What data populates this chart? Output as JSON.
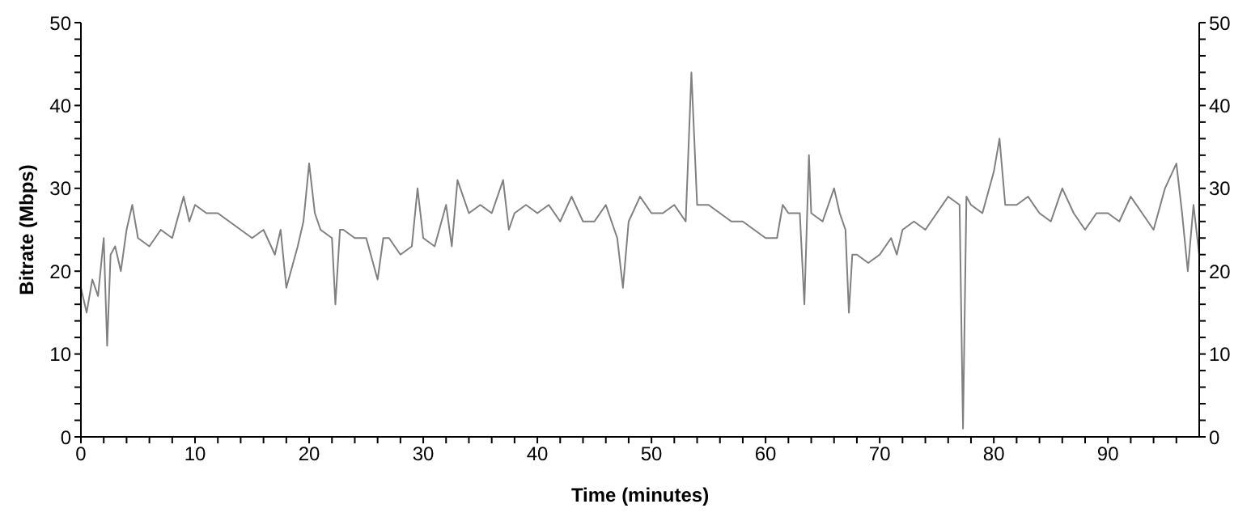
{
  "chart_data": {
    "type": "line",
    "xlabel": "Time (minutes)",
    "ylabel": "Bitrate (Mbps)",
    "color": "#808080",
    "marker": "none",
    "line_style": "solid",
    "grid": false,
    "legend": false,
    "x": [
      0,
      0.5,
      1,
      1.5,
      2,
      2.3,
      2.6,
      3,
      3.5,
      4,
      4.5,
      5,
      6,
      7,
      8,
      9,
      9.5,
      10,
      11,
      12,
      13,
      14,
      15,
      16,
      17,
      17.5,
      18,
      19,
      19.5,
      20,
      20.5,
      21,
      22,
      22.3,
      22.7,
      23,
      24,
      25,
      26,
      26.5,
      27,
      28,
      29,
      29.5,
      30,
      31,
      32,
      32.5,
      33,
      34,
      35,
      36,
      37,
      37.5,
      38,
      39,
      40,
      41,
      42,
      43,
      44,
      45,
      46,
      47,
      47.5,
      48,
      49,
      50,
      51,
      52,
      53,
      53.5,
      54,
      55,
      56,
      57,
      58,
      59,
      60,
      61,
      61.5,
      62,
      63,
      63.4,
      63.8,
      64,
      65,
      66,
      66.5,
      67,
      67.3,
      67.6,
      68,
      69,
      70,
      71,
      71.5,
      72,
      73,
      74,
      75,
      76,
      77,
      77.3,
      77.6,
      78,
      79,
      80,
      80.5,
      81,
      82,
      83,
      84,
      85,
      86,
      87,
      88,
      89,
      90,
      91,
      92,
      93,
      94,
      95,
      96,
      96.5,
      97,
      97.5,
      98
    ],
    "values": [
      18,
      15,
      19,
      17,
      24,
      11,
      22,
      23,
      20,
      25,
      28,
      24,
      23,
      25,
      24,
      29,
      26,
      28,
      27,
      27,
      26,
      25,
      24,
      25,
      22,
      25,
      18,
      23,
      26,
      33,
      27,
      25,
      24,
      16,
      25,
      25,
      24,
      24,
      19,
      24,
      24,
      22,
      23,
      30,
      24,
      23,
      28,
      23,
      31,
      27,
      28,
      27,
      31,
      25,
      27,
      28,
      27,
      28,
      26,
      29,
      26,
      26,
      28,
      24,
      18,
      26,
      29,
      27,
      27,
      28,
      26,
      44,
      28,
      28,
      27,
      26,
      26,
      25,
      24,
      24,
      28,
      27,
      27,
      16,
      34,
      27,
      26,
      30,
      27,
      25,
      15,
      22,
      22,
      21,
      22,
      24,
      22,
      25,
      26,
      25,
      27,
      29,
      28,
      1,
      29,
      28,
      27,
      32,
      36,
      28,
      28,
      29,
      27,
      26,
      30,
      27,
      25,
      27,
      27,
      26,
      29,
      27,
      25,
      30,
      33,
      27,
      20,
      28,
      22
    ],
    "xlim": [
      0,
      98
    ],
    "xticks": [
      0,
      {
        "value": 2,
        "label": null
      },
      {
        "value": 4,
        "label": null
      },
      {
        "value": 6,
        "label": null
      },
      {
        "value": 8,
        "label": null
      },
      10,
      {
        "value": 12,
        "label": null
      },
      {
        "value": 14,
        "label": null
      },
      {
        "value": 16,
        "label": null
      },
      {
        "value": 18,
        "label": null
      },
      20,
      {
        "value": 22,
        "label": null
      },
      {
        "value": 24,
        "label": null
      },
      {
        "value": 26,
        "label": null
      },
      {
        "value": 28,
        "label": null
      },
      30,
      {
        "value": 32,
        "label": null
      },
      {
        "value": 34,
        "label": null
      },
      {
        "value": 36,
        "label": null
      },
      {
        "value": 38,
        "label": null
      },
      40,
      {
        "value": 42,
        "label": null
      },
      {
        "value": 44,
        "label": null
      },
      {
        "value": 46,
        "label": null
      },
      {
        "value": 48,
        "label": null
      },
      50,
      {
        "value": 52,
        "label": null
      },
      {
        "value": 54,
        "label": null
      },
      {
        "value": 56,
        "label": null
      },
      {
        "value": 58,
        "label": null
      },
      60,
      {
        "value": 62,
        "label": null
      },
      {
        "value": 64,
        "label": null
      },
      {
        "value": 66,
        "label": null
      },
      {
        "value": 68,
        "label": null
      },
      70,
      {
        "value": 72,
        "label": null
      },
      {
        "value": 74,
        "label": null
      },
      {
        "value": 76,
        "label": null
      },
      {
        "value": 78,
        "label": null
      },
      80,
      {
        "value": 82,
        "label": null
      },
      {
        "value": 84,
        "label": null
      },
      {
        "value": 86,
        "label": null
      },
      {
        "value": 88,
        "label": null
      },
      90,
      {
        "value": 92,
        "label": null
      },
      {
        "value": 94,
        "label": null
      },
      {
        "value": 96,
        "label": null
      }
    ],
    "ylim": [
      0,
      50
    ],
    "yticks": [
      0,
      {
        "value": 2,
        "label": null
      },
      {
        "value": 4,
        "label": null
      },
      {
        "value": 6,
        "label": null
      },
      {
        "value": 8,
        "label": null
      },
      10,
      {
        "value": 12,
        "label": null
      },
      {
        "value": 14,
        "label": null
      },
      {
        "value": 16,
        "label": null
      },
      {
        "value": 18,
        "label": null
      },
      20,
      {
        "value": 22,
        "label": null
      },
      {
        "value": 24,
        "label": null
      },
      {
        "value": 26,
        "label": null
      },
      {
        "value": 28,
        "label": null
      },
      30,
      {
        "value": 32,
        "label": null
      },
      {
        "value": 34,
        "label": null
      },
      {
        "value": 36,
        "label": null
      },
      {
        "value": 38,
        "label": null
      },
      40,
      {
        "value": 42,
        "label": null
      },
      {
        "value": 44,
        "label": null
      },
      {
        "value": 46,
        "label": null
      },
      {
        "value": 48,
        "label": null
      },
      50
    ],
    "y2lim": [
      0,
      50
    ],
    "y2ticks": [
      0,
      {
        "value": 2,
        "label": null
      },
      {
        "value": 4,
        "label": null
      },
      {
        "value": 6,
        "label": null
      },
      {
        "value": 8,
        "label": null
      },
      10,
      {
        "value": 12,
        "label": null
      },
      {
        "value": 14,
        "label": null
      },
      {
        "value": 16,
        "label": null
      },
      {
        "value": 18,
        "label": null
      },
      20,
      {
        "value": 22,
        "label": null
      },
      {
        "value": 24,
        "label": null
      },
      {
        "value": 26,
        "label": null
      },
      {
        "value": 28,
        "label": null
      },
      30,
      {
        "value": 32,
        "label": null
      },
      {
        "value": 34,
        "label": null
      },
      {
        "value": 36,
        "label": null
      },
      {
        "value": 38,
        "label": null
      },
      40,
      {
        "value": 42,
        "label": null
      },
      {
        "value": 44,
        "label": null
      },
      {
        "value": 46,
        "label": null
      },
      {
        "value": 48,
        "label": null
      },
      50
    ]
  }
}
